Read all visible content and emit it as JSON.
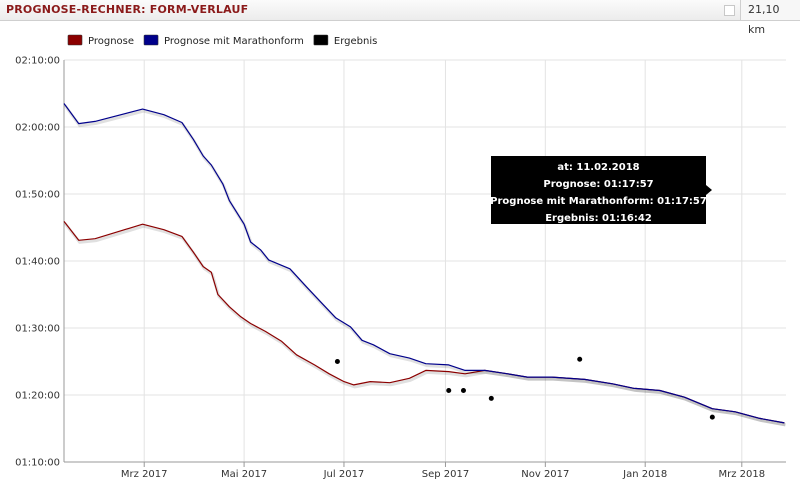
{
  "header": {
    "title": "PROGNOSE-RECHNER: FORM-VERLAUF",
    "distance": "21,10 km"
  },
  "chart_data": {
    "type": "line",
    "ylim": [
      "01:10:00",
      "02:10:00"
    ],
    "xlim": [
      "2017-01-11",
      "2018-03-28"
    ],
    "y_ticks": [
      "02:10:00",
      "02:00:00",
      "01:50:00",
      "01:40:00",
      "01:30:00",
      "01:20:00",
      "01:10:00"
    ],
    "x_ticks": [
      "Mrz 2017",
      "Mai 2017",
      "Jul 2017",
      "Sep 2017",
      "Nov 2017",
      "Jan 2018",
      "Mrz 2018"
    ],
    "x_tick_dates": [
      "2017-03-01",
      "2017-05-01",
      "2017-07-01",
      "2017-09-01",
      "2017-11-01",
      "2018-01-01",
      "2018-03-01"
    ],
    "grid": true,
    "legend_position": "top-left",
    "series": [
      {
        "name": "Prognose",
        "color": "#8b0000",
        "points": [
          [
            "2017-01-11",
            "01:45:55"
          ],
          [
            "2017-01-20",
            "01:43:05"
          ],
          [
            "2017-01-30",
            "01:43:20"
          ],
          [
            "2017-02-28",
            "01:45:30"
          ],
          [
            "2017-03-13",
            "01:44:40"
          ],
          [
            "2017-03-24",
            "01:43:40"
          ],
          [
            "2017-03-31",
            "01:41:20"
          ],
          [
            "2017-04-06",
            "01:39:10"
          ],
          [
            "2017-04-11",
            "01:38:20"
          ],
          [
            "2017-04-15",
            "01:35:00"
          ],
          [
            "2017-04-22",
            "01:33:10"
          ],
          [
            "2017-04-29",
            "01:31:40"
          ],
          [
            "2017-05-05",
            "01:30:40"
          ],
          [
            "2017-05-14",
            "01:29:30"
          ],
          [
            "2017-05-24",
            "01:28:00"
          ],
          [
            "2017-06-02",
            "01:26:00"
          ],
          [
            "2017-06-13",
            "01:24:30"
          ],
          [
            "2017-06-22",
            "01:23:10"
          ],
          [
            "2017-07-01",
            "01:22:00"
          ],
          [
            "2017-07-07",
            "01:21:30"
          ],
          [
            "2017-07-17",
            "01:22:00"
          ],
          [
            "2017-07-29",
            "01:21:50"
          ],
          [
            "2017-08-10",
            "01:22:30"
          ],
          [
            "2017-08-20",
            "01:23:40"
          ],
          [
            "2017-09-03",
            "01:23:30"
          ],
          [
            "2017-09-13",
            "01:23:10"
          ],
          [
            "2017-09-25",
            "01:23:40"
          ],
          [
            "2017-10-09",
            "01:23:10"
          ],
          [
            "2017-10-21",
            "01:22:40"
          ],
          [
            "2017-11-05",
            "01:22:40"
          ],
          [
            "2017-11-25",
            "01:22:20"
          ],
          [
            "2017-12-12",
            "01:21:40"
          ],
          [
            "2017-12-25",
            "01:21:00"
          ],
          [
            "2018-01-10",
            "01:20:40"
          ],
          [
            "2018-01-25",
            "01:19:40"
          ],
          [
            "2018-02-11",
            "01:17:57"
          ],
          [
            "2018-02-25",
            "01:17:30"
          ],
          [
            "2018-03-12",
            "01:16:30"
          ],
          [
            "2018-03-27",
            "01:15:50"
          ]
        ]
      },
      {
        "name": "Prognose mit Marathonform",
        "color": "#00008b",
        "points": [
          [
            "2017-01-11",
            "02:03:30"
          ],
          [
            "2017-01-20",
            "02:00:30"
          ],
          [
            "2017-01-30",
            "02:00:50"
          ],
          [
            "2017-02-28",
            "02:02:40"
          ],
          [
            "2017-03-13",
            "02:01:50"
          ],
          [
            "2017-03-24",
            "02:00:40"
          ],
          [
            "2017-03-31",
            "01:58:10"
          ],
          [
            "2017-04-06",
            "01:55:40"
          ],
          [
            "2017-04-11",
            "01:54:20"
          ],
          [
            "2017-04-18",
            "01:51:30"
          ],
          [
            "2017-04-22",
            "01:49:00"
          ],
          [
            "2017-05-01",
            "01:45:30"
          ],
          [
            "2017-05-05",
            "01:42:50"
          ],
          [
            "2017-05-11",
            "01:41:40"
          ],
          [
            "2017-05-16",
            "01:40:10"
          ],
          [
            "2017-05-29",
            "01:38:50"
          ],
          [
            "2017-06-08",
            "01:36:10"
          ],
          [
            "2017-06-17",
            "01:33:50"
          ],
          [
            "2017-06-26",
            "01:31:30"
          ],
          [
            "2017-07-05",
            "01:30:10"
          ],
          [
            "2017-07-12",
            "01:28:10"
          ],
          [
            "2017-07-19",
            "01:27:30"
          ],
          [
            "2017-07-29",
            "01:26:10"
          ],
          [
            "2017-08-10",
            "01:25:30"
          ],
          [
            "2017-08-20",
            "01:24:40"
          ],
          [
            "2017-09-03",
            "01:24:30"
          ],
          [
            "2017-09-13",
            "01:23:40"
          ],
          [
            "2017-09-25",
            "01:23:40"
          ],
          [
            "2017-10-09",
            "01:23:10"
          ],
          [
            "2017-10-21",
            "01:22:40"
          ],
          [
            "2017-11-05",
            "01:22:40"
          ],
          [
            "2017-11-25",
            "01:22:20"
          ],
          [
            "2017-12-12",
            "01:21:40"
          ],
          [
            "2017-12-25",
            "01:21:00"
          ],
          [
            "2018-01-10",
            "01:20:40"
          ],
          [
            "2018-01-25",
            "01:19:40"
          ],
          [
            "2018-02-11",
            "01:17:57"
          ],
          [
            "2018-02-25",
            "01:17:30"
          ],
          [
            "2018-03-12",
            "01:16:30"
          ],
          [
            "2018-03-27",
            "01:15:50"
          ]
        ]
      },
      {
        "name": "Ergebnis",
        "color": "#000000",
        "kind": "scatter",
        "points": [
          [
            "2017-06-27",
            "01:25:00"
          ],
          [
            "2017-09-03",
            "01:20:40"
          ],
          [
            "2017-09-12",
            "01:20:40"
          ],
          [
            "2017-09-29",
            "01:19:30"
          ],
          [
            "2017-11-22",
            "01:25:20"
          ],
          [
            "2018-02-11",
            "01:16:42"
          ]
        ]
      }
    ],
    "tooltip": {
      "lines": [
        "at: 11.02.2018",
        "Prognose: 01:17:57",
        "Prognose mit Marathonform: 01:17:57",
        "Ergebnis: 01:16:42"
      ]
    }
  }
}
